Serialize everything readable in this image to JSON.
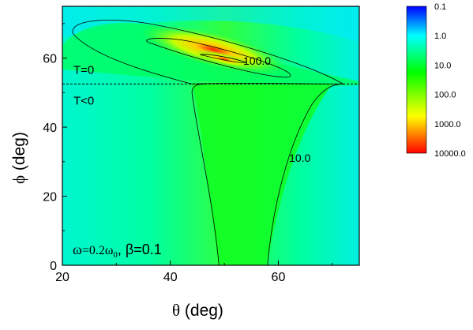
{
  "chart_data": {
    "type": "heatmap",
    "xlabel_symbol": "θ",
    "xlabel_unit": "(deg)",
    "ylabel_symbol": "ϕ",
    "ylabel_unit": "(deg)",
    "xlim": [
      20,
      75
    ],
    "ylim": [
      0,
      75
    ],
    "x_ticks": [
      20,
      40,
      60
    ],
    "y_ticks": [
      0,
      20,
      40,
      60
    ],
    "scale": "log",
    "colorbar": {
      "labels": [
        "0.1",
        "1.0",
        "10.0",
        "100.0",
        "1000.0",
        "10000.0"
      ],
      "values": [
        0.1,
        1,
        10,
        100,
        1000,
        10000
      ],
      "colors": [
        "#0000ff",
        "#00ffff",
        "#00ff00",
        "#ffff00",
        "#ff0000"
      ]
    },
    "contours": [
      {
        "level": 10.0,
        "label": "10.0"
      },
      {
        "level": 100.0,
        "label": "100.0"
      }
    ],
    "boundary": {
      "phi": 52.5,
      "upper_label": "T=0",
      "lower_label": "T<0"
    },
    "peak": {
      "theta": 49,
      "phi": 60,
      "value": 10000
    },
    "annotation": {
      "omega": "ω",
      "eq1": "=0.2ω",
      "sub0": "0",
      "beta_part": ", β=0.1"
    }
  }
}
